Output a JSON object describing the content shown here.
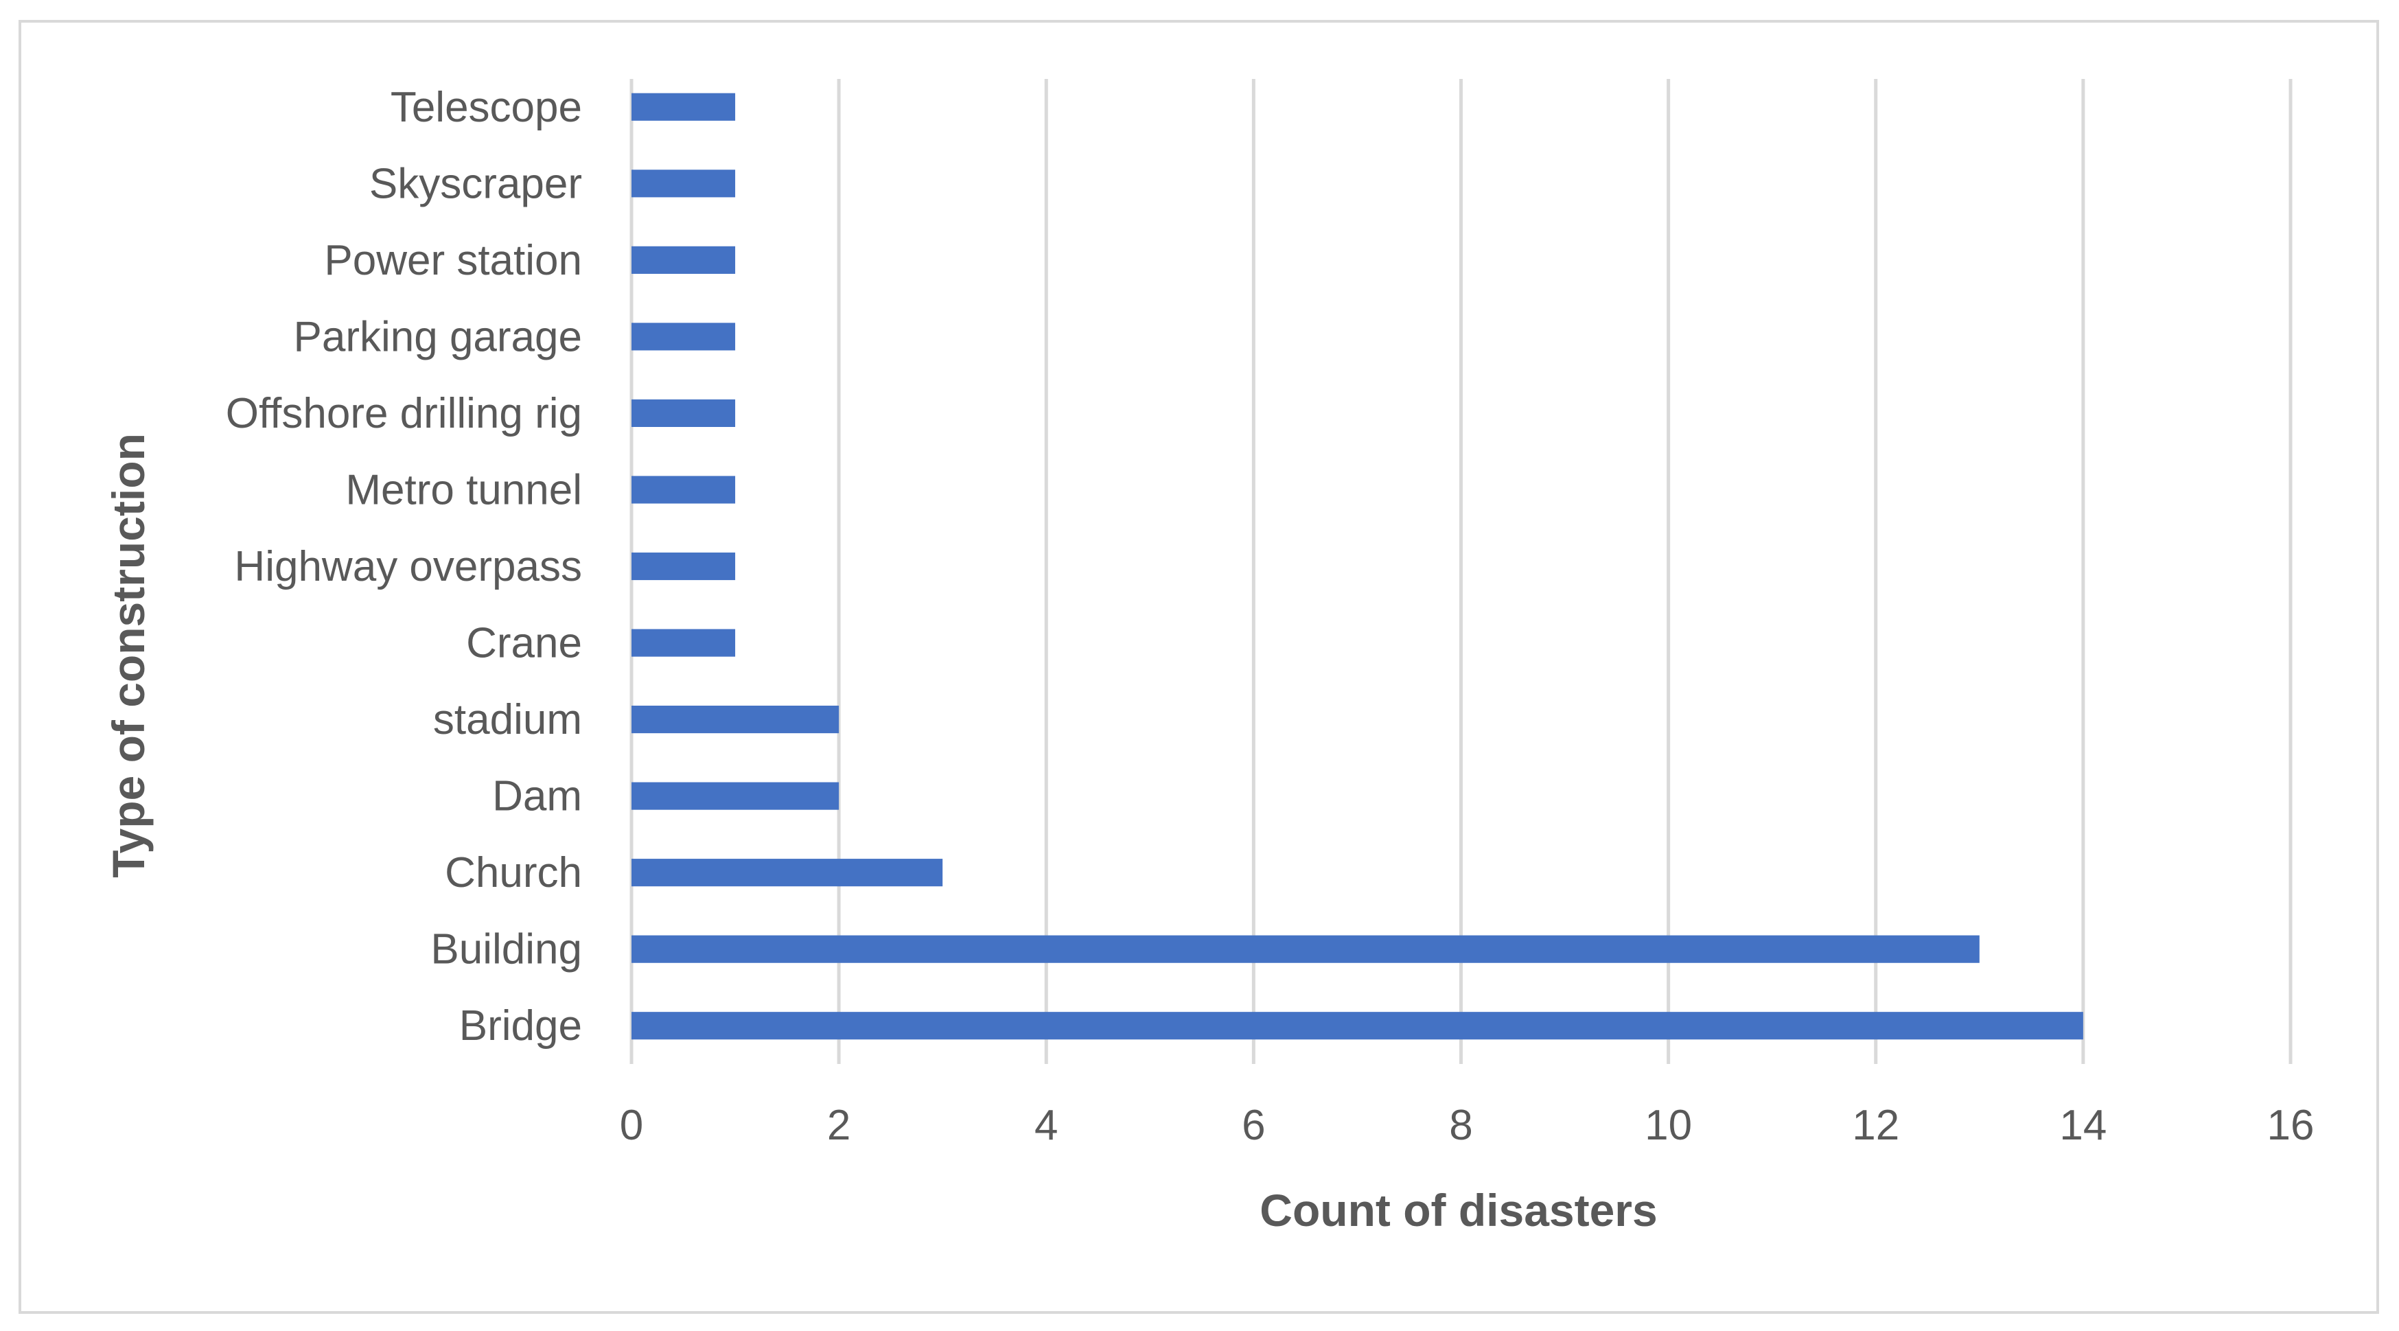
{
  "chart_data": {
    "type": "bar",
    "orientation": "horizontal",
    "categories": [
      "Bridge",
      "Building",
      "Church",
      "Dam",
      "stadium",
      "Crane",
      "Highway overpass",
      "Metro tunnel",
      "Offshore drilling rig",
      "Parking garage",
      "Power station",
      "Skyscraper",
      "Telescope"
    ],
    "values": [
      14,
      13,
      3,
      2,
      2,
      1,
      1,
      1,
      1,
      1,
      1,
      1,
      1
    ],
    "title": "",
    "xlabel": "Count of disasters",
    "ylabel": "Type of construction",
    "xlim": [
      0,
      16
    ],
    "xticks": [
      "0",
      "2",
      "4",
      "6",
      "8",
      "10",
      "12",
      "14",
      "16"
    ],
    "grid": true,
    "legend": "none",
    "bar_color": "#4472c4",
    "grid_color": "#d9d9d9",
    "text_color": "#595959"
  }
}
